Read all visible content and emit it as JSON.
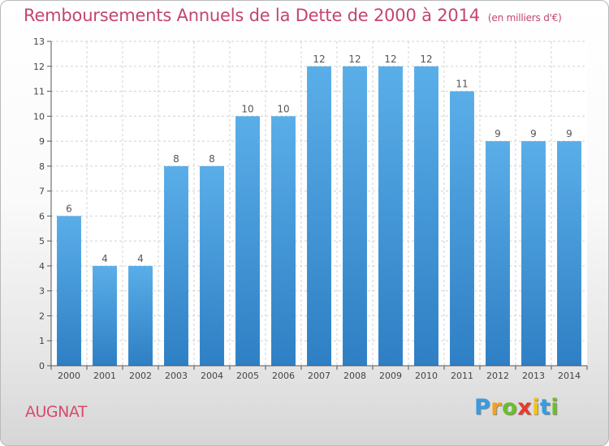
{
  "chart_data": {
    "type": "bar",
    "title": "Remboursements Annuels de la Dette de 2000 à 2014",
    "subtitle": "(en milliers d'€)",
    "categories": [
      "2000",
      "2001",
      "2002",
      "2003",
      "2004",
      "2005",
      "2006",
      "2007",
      "2008",
      "2009",
      "2010",
      "2011",
      "2012",
      "2013",
      "2014"
    ],
    "values": [
      6,
      4,
      4,
      8,
      8,
      10,
      10,
      12,
      12,
      12,
      12,
      11,
      9,
      9,
      9
    ],
    "ylim": [
      0,
      13
    ],
    "yticks": [
      0,
      1,
      2,
      3,
      4,
      5,
      6,
      7,
      8,
      9,
      10,
      11,
      12,
      13
    ],
    "grid": true,
    "bar_color_top": "#5aaee8",
    "bar_color_bottom": "#2e7fc4"
  },
  "commune": "AUGNAT",
  "logo": {
    "letters": [
      "P",
      "r",
      "o",
      "x",
      "i",
      "t",
      "i"
    ],
    "colors": [
      "#3a9be0",
      "#f3a21a",
      "#6bbf2a",
      "#e83a2a",
      "#f3c21a",
      "#3a9be0",
      "#6bbf2a"
    ]
  }
}
